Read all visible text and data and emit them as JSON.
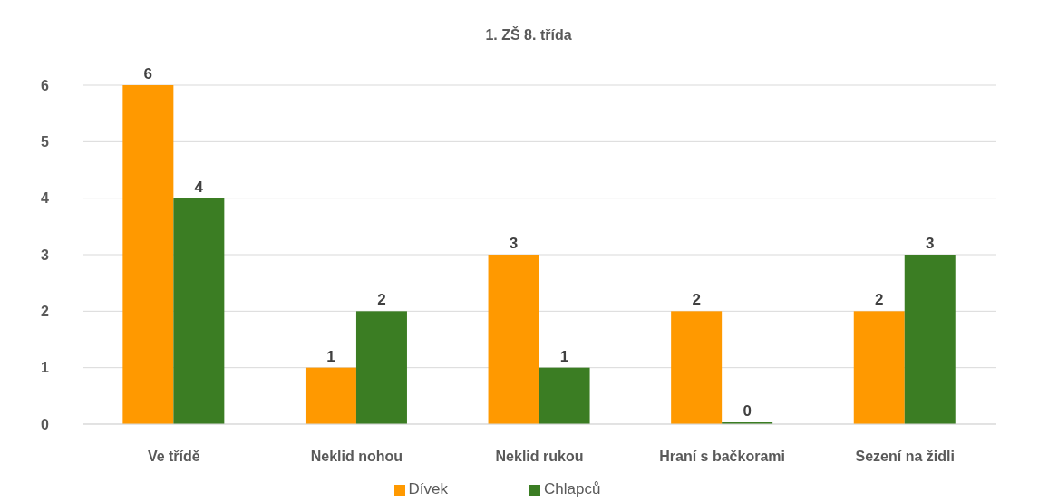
{
  "chart_data": {
    "type": "bar",
    "title": "1. ZŠ 8. třída",
    "categories": [
      "Ve třídě",
      "Neklid nohou",
      "Neklid rukou",
      "Hraní s bačkorami",
      "Sezení na židli"
    ],
    "series": [
      {
        "name": "Dívek",
        "color": "#ff9900",
        "values": [
          6,
          1,
          3,
          2,
          2
        ]
      },
      {
        "name": "Chlapců",
        "color": "#3b7d23",
        "values": [
          4,
          2,
          1,
          0,
          3
        ]
      }
    ],
    "ylim": [
      0,
      6
    ],
    "yticks": [
      0,
      1,
      2,
      3,
      4,
      5,
      6
    ],
    "grid": "y",
    "legend": "bottom",
    "data_labels": true
  }
}
